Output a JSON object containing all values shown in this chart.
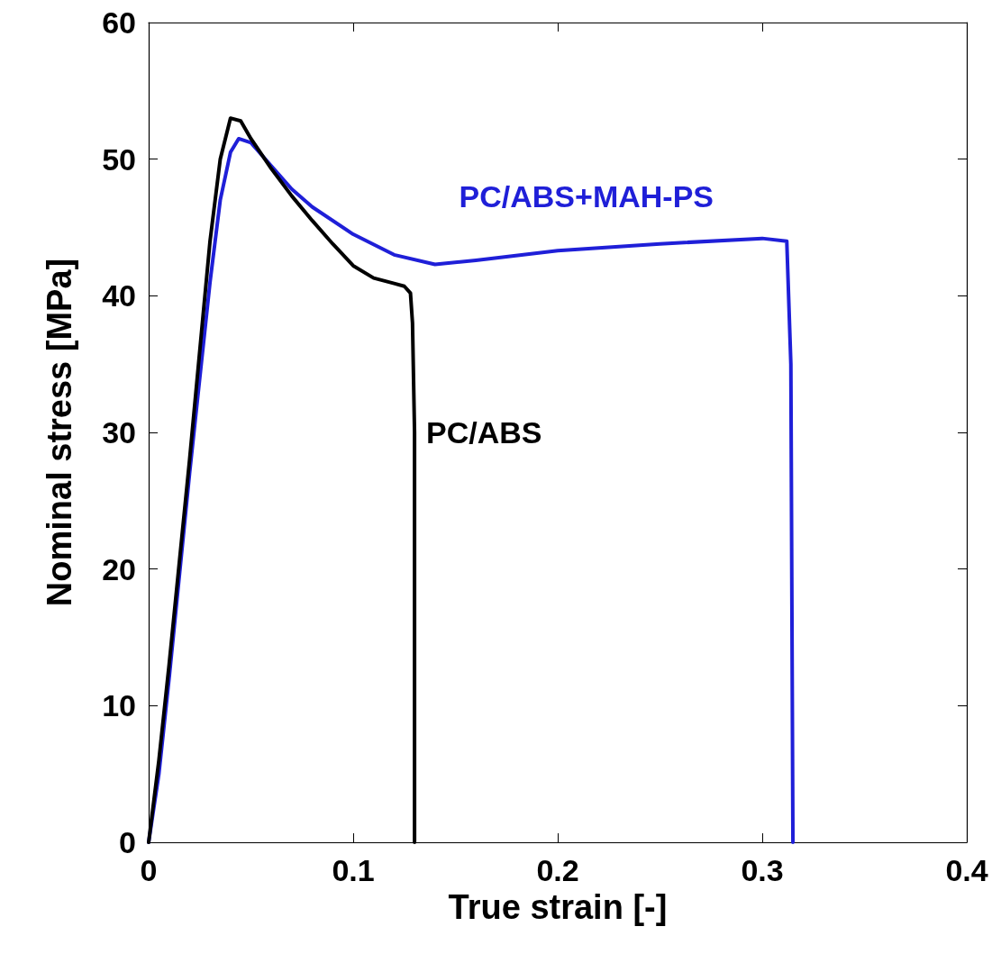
{
  "chart_data": {
    "type": "line",
    "xlabel": "True strain [-]",
    "ylabel": "Nominal stress [MPa]",
    "xlim": [
      0,
      0.4
    ],
    "xticks": [
      0,
      0.1,
      0.2,
      0.3,
      0.4
    ],
    "ylim": [
      0,
      60
    ],
    "yticks": [
      0,
      10,
      20,
      30,
      40,
      50,
      60
    ],
    "grid": false,
    "legend": false,
    "marker": "none",
    "line_style": "solid",
    "series": [
      {
        "name": "PC/ABS",
        "color": "#000000",
        "x": [
          0,
          0.005,
          0.01,
          0.02,
          0.03,
          0.035,
          0.04,
          0.045,
          0.05,
          0.06,
          0.07,
          0.08,
          0.09,
          0.1,
          0.11,
          0.12,
          0.125,
          0.128,
          0.129,
          0.13,
          0.13
        ],
        "values": [
          0,
          6,
          13,
          28,
          44,
          50,
          53,
          52.8,
          51.5,
          49.3,
          47.3,
          45.5,
          43.8,
          42.2,
          41.3,
          40.9,
          40.7,
          40.2,
          38,
          30,
          0
        ]
      },
      {
        "name": "PC/ABS+MAH-PS",
        "color": "#1f1fd8",
        "x": [
          0,
          0.005,
          0.01,
          0.02,
          0.03,
          0.035,
          0.04,
          0.044,
          0.05,
          0.06,
          0.07,
          0.08,
          0.1,
          0.12,
          0.14,
          0.16,
          0.2,
          0.25,
          0.3,
          0.312,
          0.314,
          0.315
        ],
        "values": [
          0,
          5,
          12,
          27,
          41,
          47,
          50.5,
          51.5,
          51.2,
          49.5,
          47.8,
          46.5,
          44.5,
          43,
          42.3,
          42.6,
          43.3,
          43.8,
          44.2,
          44,
          35,
          0
        ]
      }
    ]
  }
}
